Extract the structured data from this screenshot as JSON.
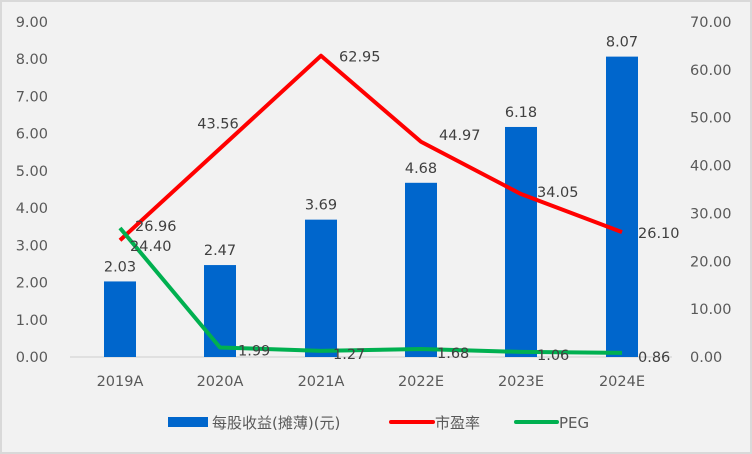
{
  "chart_data": {
    "type": "bar+line",
    "title": "",
    "categories": [
      "2019A",
      "2020A",
      "2021A",
      "2022E",
      "2023E",
      "2024E"
    ],
    "series": [
      {
        "name": "每股收益(摊薄)(元)",
        "type": "bar",
        "axis": "left",
        "color": "#0066cc",
        "values": [
          2.03,
          2.47,
          3.69,
          4.68,
          6.18,
          8.07
        ]
      },
      {
        "name": "市盈率",
        "type": "line",
        "axis": "right",
        "color": "#ff0000",
        "values": [
          24.4,
          43.56,
          62.95,
          44.97,
          34.05,
          26.1
        ]
      },
      {
        "name": "PEG",
        "type": "line",
        "axis": "right",
        "color": "#00b050",
        "values": [
          26.96,
          1.99,
          1.27,
          1.68,
          1.06,
          0.86
        ]
      }
    ],
    "left_axis": {
      "ylim": [
        0,
        9
      ],
      "ticks": [
        "0.00",
        "1.00",
        "2.00",
        "3.00",
        "4.00",
        "5.00",
        "6.00",
        "7.00",
        "8.00",
        "9.00"
      ]
    },
    "right_axis": {
      "ylim": [
        0,
        70
      ],
      "ticks": [
        "0.00",
        "10.00",
        "20.00",
        "30.00",
        "40.00",
        "50.00",
        "60.00",
        "70.00"
      ]
    },
    "grid": false,
    "legend_position": "bottom"
  },
  "labels": {
    "bar": [
      "2.03",
      "2.47",
      "3.69",
      "4.68",
      "6.18",
      "8.07"
    ],
    "pe": [
      "24.40",
      "43.56",
      "62.95",
      "44.97",
      "34.05",
      "26.10"
    ],
    "peg": [
      "26.96",
      "1.99",
      "1.27",
      "1.68",
      "1.06",
      "0.86"
    ]
  },
  "legend": {
    "eps": "每股收益(摊薄)(元)",
    "pe": "市盈率",
    "peg": "PEG"
  }
}
